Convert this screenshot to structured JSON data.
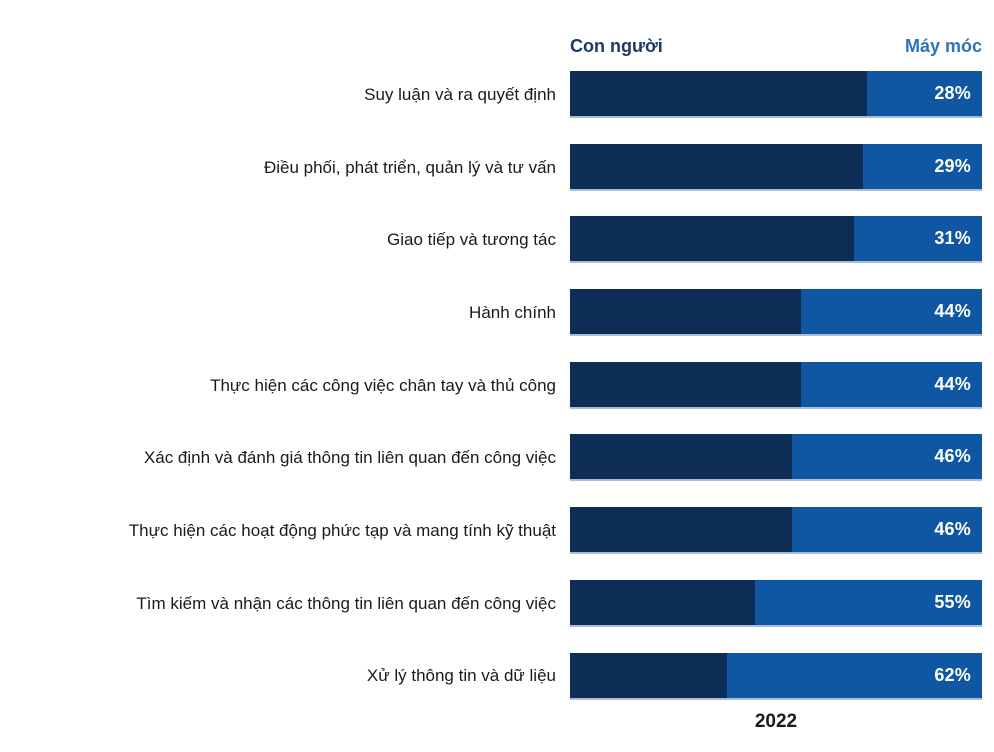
{
  "chart_data": {
    "type": "bar",
    "orientation": "horizontal",
    "stacked": true,
    "unit": "%",
    "xlim": [
      0,
      100
    ],
    "grid": false,
    "legend": {
      "human": "Con người",
      "machine": "Máy móc",
      "position": "top"
    },
    "categories": [
      "Suy luận và ra quyết định",
      "Điều phối, phát triển, quản lý và tư vấn",
      "Giao tiếp và tương tác",
      "Hành chính",
      "Thực hiện các công việc chân tay và thủ công",
      "Xác định và đánh giá thông tin liên quan đến công việc",
      "Thực hiện các hoạt động phức tạp và mang tính kỹ thuật",
      "Tìm kiếm và nhận các thông tin liên quan đến công việc",
      "Xử lý thông tin và dữ liệu"
    ],
    "series": [
      {
        "name": "Con người",
        "values": [
          72,
          71,
          69,
          56,
          56,
          54,
          54,
          45,
          38
        ],
        "color": "#0d2d56"
      },
      {
        "name": "Máy móc",
        "values": [
          28,
          29,
          31,
          44,
          44,
          46,
          46,
          55,
          62
        ],
        "color": "#1057a3"
      }
    ],
    "value_labels": [
      "28%",
      "29%",
      "31%",
      "44%",
      "44%",
      "46%",
      "46%",
      "55%",
      "62%"
    ],
    "year_label": "2022"
  },
  "colors": {
    "human_bar": "#0d2d56",
    "machine_bar": "#1057a3",
    "legend_human_text": "#1f3864",
    "legend_machine_text": "#2e75b6",
    "category_text": "#1a1a1a",
    "value_text": "#ffffff",
    "year_text": "#1a1a1a",
    "background": "#ffffff"
  }
}
